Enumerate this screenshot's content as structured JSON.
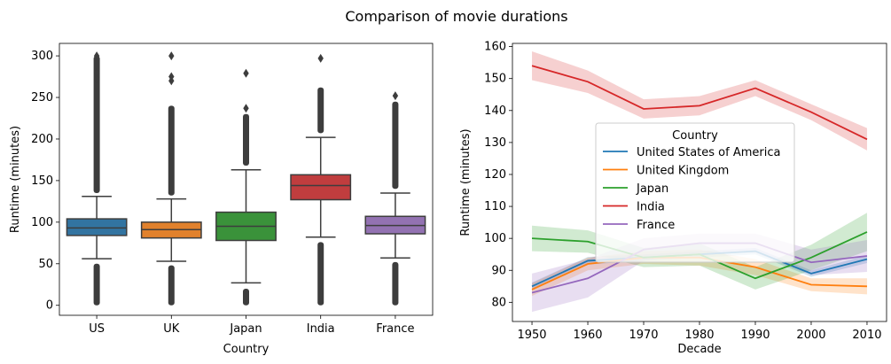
{
  "figure_title": "Comparison of movie durations",
  "chart_data": [
    {
      "type": "box",
      "xlabel": "Country",
      "ylabel": "Runtime (minutes)",
      "ylim": [
        -12,
        315
      ],
      "yticks": [
        0,
        50,
        100,
        150,
        200,
        250,
        300
      ],
      "categories": [
        "US",
        "UK",
        "Japan",
        "India",
        "France"
      ],
      "colors": [
        "#3274a1",
        "#e1812c",
        "#3a923a",
        "#c03d3e",
        "#9372b2"
      ],
      "boxes": [
        {
          "category": "US",
          "q1": 84,
          "median": 93,
          "q3": 104,
          "whisker_low": 56,
          "whisker_high": 131,
          "outliers_low": [
            0,
            50
          ],
          "outliers_high": [
            135,
            300
          ],
          "outliers_extra": [
            300,
            280,
            272
          ]
        },
        {
          "category": "UK",
          "q1": 81,
          "median": 91,
          "q3": 100,
          "whisker_low": 53,
          "whisker_high": 128,
          "outliers_low": [
            0,
            48
          ],
          "outliers_high": [
            132,
            240
          ],
          "outliers_extra": [
            300,
            275,
            270
          ]
        },
        {
          "category": "Japan",
          "q1": 78,
          "median": 95,
          "q3": 112,
          "whisker_low": 27,
          "whisker_high": 163,
          "outliers_low": [
            0,
            20
          ],
          "outliers_high": [
            168,
            230
          ],
          "outliers_extra": [
            279,
            237
          ]
        },
        {
          "category": "India",
          "q1": 127,
          "median": 144,
          "q3": 157,
          "whisker_low": 82,
          "whisker_high": 202,
          "outliers_low": [
            0,
            76
          ],
          "outliers_high": [
            207,
            262
          ],
          "outliers_extra": [
            297
          ]
        },
        {
          "category": "France",
          "q1": 86,
          "median": 96,
          "q3": 107,
          "whisker_low": 57,
          "whisker_high": 135,
          "outliers_low": [
            0,
            52
          ],
          "outliers_high": [
            140,
            245
          ],
          "outliers_extra": [
            252
          ]
        }
      ]
    },
    {
      "type": "line",
      "xlabel": "Decade",
      "ylabel": "Runtime (minutes)",
      "x": [
        1950,
        1960,
        1970,
        1980,
        1990,
        2000,
        2010
      ],
      "xlim": [
        1946.5,
        2013.5
      ],
      "ylim": [
        74,
        161
      ],
      "yticks": [
        80,
        90,
        100,
        110,
        120,
        130,
        140,
        150,
        160
      ],
      "legend_title": "Country",
      "legend_position": "center",
      "series": [
        {
          "name": "United States of America",
          "color": "#1f77b4",
          "values": [
            85,
            93,
            94,
            95,
            96,
            89,
            93.5
          ],
          "ci": [
            1.2,
            1.2,
            1.0,
            1.0,
            1.0,
            1.0,
            1.2
          ]
        },
        {
          "name": "United Kingdom",
          "color": "#ff7f0e",
          "values": [
            84,
            92,
            94,
            94,
            91,
            85.5,
            85
          ],
          "ci": [
            2.0,
            2.0,
            2.0,
            2.5,
            2.5,
            2.0,
            2.5
          ]
        },
        {
          "name": "Japan",
          "color": "#2ca02c",
          "values": [
            100,
            99,
            94,
            95,
            87.5,
            94,
            102
          ],
          "ci": [
            4.0,
            3.5,
            3.0,
            3.5,
            3.5,
            4.0,
            6.0
          ]
        },
        {
          "name": "India",
          "color": "#d62728",
          "values": [
            154,
            149,
            140.5,
            141.5,
            147,
            139.5,
            131
          ],
          "ci": [
            4.5,
            3.5,
            3.0,
            3.0,
            2.5,
            2.5,
            3.5
          ]
        },
        {
          "name": "France",
          "color": "#9467bd",
          "values": [
            83,
            87.5,
            96.5,
            98.5,
            98.5,
            92.5,
            94.5
          ],
          "ci": [
            6.0,
            6.0,
            3.5,
            3.0,
            3.0,
            4.0,
            5.0
          ]
        }
      ]
    }
  ]
}
